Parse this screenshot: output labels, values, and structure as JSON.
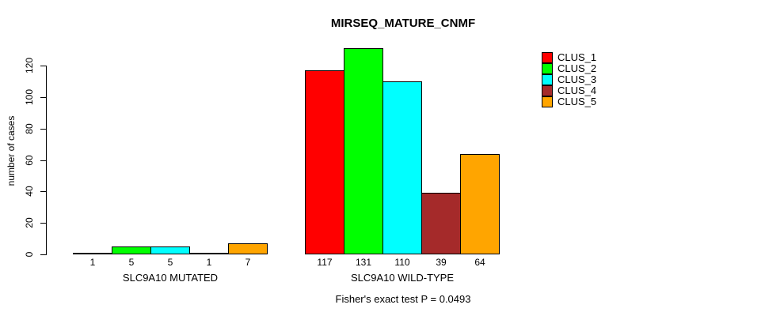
{
  "chart_data": {
    "type": "bar",
    "title": "MIRSEQ_MATURE_CNMF",
    "ylabel": "number of cases",
    "xlabel": "",
    "ylim": [
      0,
      120
    ],
    "yticks": [
      0,
      20,
      40,
      60,
      80,
      100,
      120
    ],
    "grid": false,
    "legend_position": "top-right",
    "categories": [
      "SLC9A10 MUTATED",
      "SLC9A10 WILD-TYPE"
    ],
    "series": [
      {
        "name": "CLUS_1",
        "color": "#FF0000",
        "values": [
          1,
          117
        ]
      },
      {
        "name": "CLUS_2",
        "color": "#00FF00",
        "values": [
          5,
          131
        ]
      },
      {
        "name": "CLUS_3",
        "color": "#00FFFF",
        "values": [
          5,
          110
        ]
      },
      {
        "name": "CLUS_4",
        "color": "#A52A2A",
        "values": [
          1,
          39
        ]
      },
      {
        "name": "CLUS_5",
        "color": "#FFA500",
        "values": [
          7,
          64
        ]
      }
    ],
    "groups": [
      {
        "label": "SLC9A10 MUTATED",
        "values": [
          1,
          5,
          5,
          1,
          7
        ]
      },
      {
        "label": "SLC9A10 WILD-TYPE",
        "values": [
          117,
          131,
          110,
          39,
          64
        ]
      }
    ],
    "bar_value_labels": [
      [
        "1",
        "5",
        "5",
        "1",
        "7"
      ],
      [
        "117",
        "131",
        "110",
        "39",
        "64"
      ]
    ],
    "footer": "Fisher's exact test P = 0.0493"
  }
}
